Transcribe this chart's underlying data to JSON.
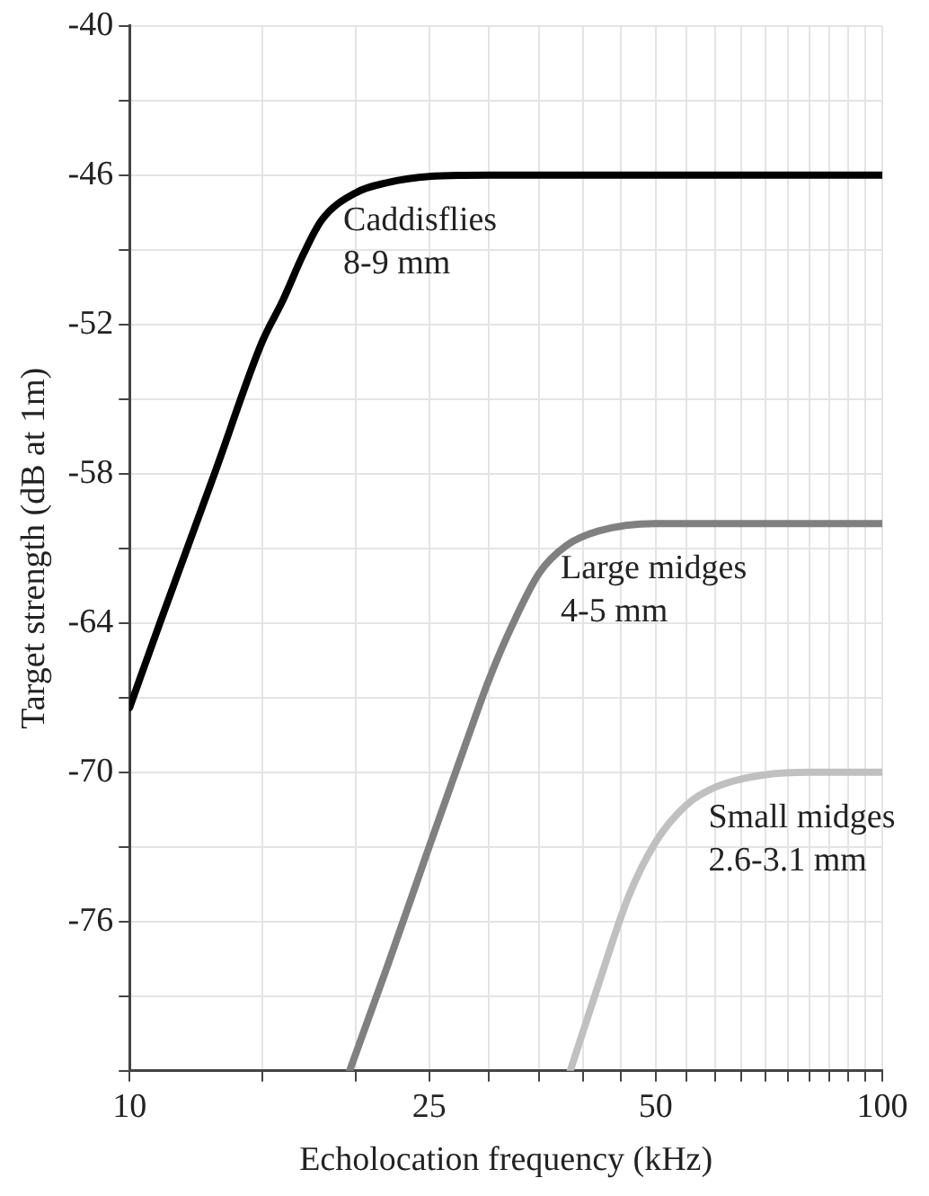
{
  "chart_data": {
    "type": "line",
    "xlabel": "Echolocation frequency (kHz)",
    "ylabel": "Target strength (dB at 1m)",
    "log": "x",
    "grid": true,
    "legend": false,
    "marker": "none",
    "line_style": "solid",
    "xlim": [
      10,
      100
    ],
    "ylim": [
      -82,
      -40
    ],
    "xticks": [
      10,
      {
        "value": 15,
        "label": null
      },
      {
        "value": 20,
        "label": null
      },
      25,
      {
        "value": 30,
        "label": null
      },
      {
        "value": 35,
        "label": null
      },
      {
        "value": 40,
        "label": null
      },
      {
        "value": 45,
        "label": null
      },
      50,
      {
        "value": 55,
        "label": null
      },
      {
        "value": 60,
        "label": null
      },
      {
        "value": 65,
        "label": null
      },
      {
        "value": 70,
        "label": null
      },
      {
        "value": 75,
        "label": null
      },
      {
        "value": 80,
        "label": null
      },
      {
        "value": 85,
        "label": null
      },
      {
        "value": 90,
        "label": null
      },
      {
        "value": 95,
        "label": null
      },
      100
    ],
    "yticks": [
      {
        "value": -82,
        "label": null
      },
      {
        "value": -79,
        "label": null
      },
      -76,
      {
        "value": -73,
        "label": null
      },
      -70,
      {
        "value": -67,
        "label": null
      },
      -64,
      {
        "value": -61,
        "label": null
      },
      -58,
      {
        "value": -55,
        "label": null
      },
      -52,
      {
        "value": -49,
        "label": null
      },
      -46,
      {
        "value": -43,
        "label": null
      },
      -40
    ],
    "series": [
      {
        "name": "Caddisflies\n8-9 mm",
        "color": "#000000",
        "x": [
          10,
          11,
          13,
          15,
          16,
          17,
          18,
          20,
          22,
          25,
          30,
          100
        ],
        "values": [
          -67.4,
          -63.9,
          -57.9,
          -52.7,
          -51,
          -49.2,
          -47.8,
          -46.7,
          -46.3,
          -46.05,
          -46,
          -46
        ]
      },
      {
        "name": "Large midges\n4-5 mm",
        "color": "#808080",
        "x": [
          19.6,
          22,
          25,
          28,
          30,
          32,
          35,
          38,
          42,
          50,
          100
        ],
        "values": [
          -82,
          -77.8,
          -73,
          -68.8,
          -66.3,
          -64.3,
          -62,
          -60.9,
          -60.3,
          -60,
          -60
        ]
      },
      {
        "name": "Small midges\n2.6-3.1 mm",
        "color": "#c0c0c0",
        "x": [
          38.5,
          42,
          46,
          50,
          55,
          60,
          70,
          80,
          100
        ],
        "values": [
          -82,
          -78.5,
          -75,
          -72.8,
          -71.3,
          -70.6,
          -70.1,
          -70,
          -70
        ]
      }
    ]
  }
}
